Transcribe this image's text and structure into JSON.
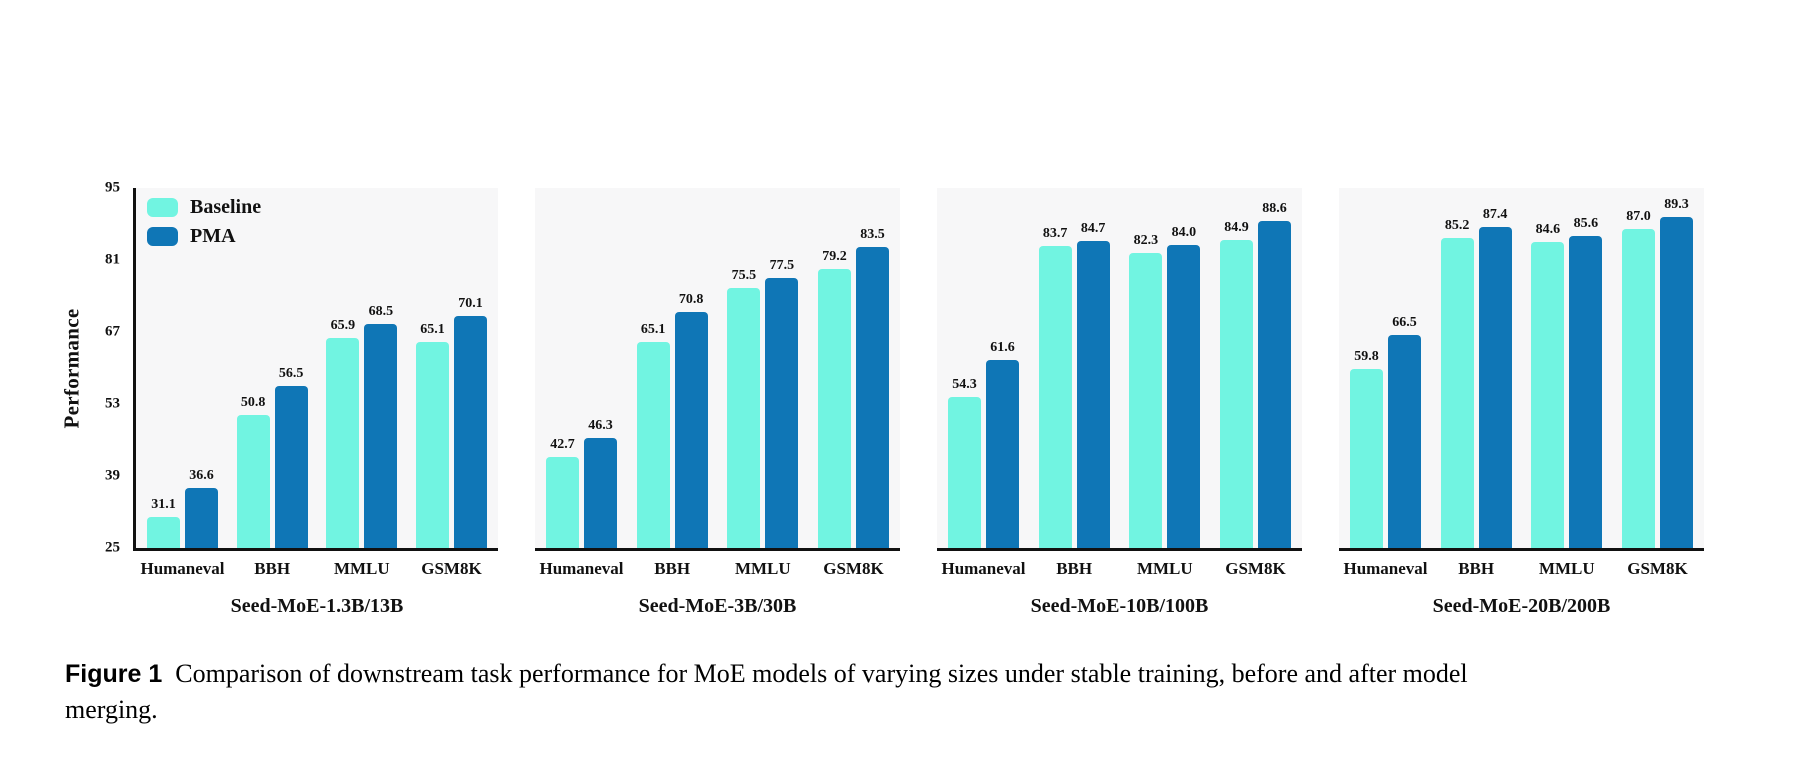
{
  "chart_data": {
    "type": "bar",
    "title": "",
    "xlabel": "",
    "ylabel": "Performance",
    "ylim": [
      25,
      95
    ],
    "y_ticks": [
      25,
      39,
      53,
      67,
      81,
      95
    ],
    "grid": false,
    "legend_position": "top-left-first-panel",
    "categories": [
      "Humaneval",
      "BBH",
      "MMLU",
      "GSM8K"
    ],
    "legend": [
      {
        "label": "Baseline",
        "color": "#71f4e1"
      },
      {
        "label": "PMA",
        "color": "#0f76b6"
      }
    ],
    "panels": [
      {
        "title": "Seed-MoE-1.3B/13B",
        "series": [
          {
            "name": "Baseline",
            "values": [
              31.1,
              50.8,
              65.9,
              65.1
            ]
          },
          {
            "name": "PMA",
            "values": [
              36.6,
              56.5,
              68.5,
              70.1
            ]
          }
        ]
      },
      {
        "title": "Seed-MoE-3B/30B",
        "series": [
          {
            "name": "Baseline",
            "values": [
              42.7,
              65.1,
              75.5,
              79.2
            ]
          },
          {
            "name": "PMA",
            "values": [
              46.3,
              70.8,
              77.5,
              83.5
            ]
          }
        ]
      },
      {
        "title": "Seed-MoE-10B/100B",
        "series": [
          {
            "name": "Baseline",
            "values": [
              54.3,
              83.7,
              82.3,
              84.9
            ]
          },
          {
            "name": "PMA",
            "values": [
              61.6,
              84.7,
              84.0,
              88.6
            ]
          }
        ]
      },
      {
        "title": "Seed-MoE-20B/200B",
        "series": [
          {
            "name": "Baseline",
            "values": [
              59.8,
              85.2,
              84.6,
              87.0
            ]
          },
          {
            "name": "PMA",
            "values": [
              66.5,
              87.4,
              85.6,
              89.3
            ]
          }
        ]
      }
    ]
  },
  "colors": {
    "baseline": "#71f4e1",
    "pma": "#0f76b6",
    "axis": "#111111",
    "plot_background": "#f7f7f8",
    "page_background": "#ffffff",
    "text": "#111111"
  },
  "caption": {
    "label": "Figure 1",
    "text": "Comparison of downstream task performance for MoE models of varying sizes under stable training, before and after model merging."
  }
}
